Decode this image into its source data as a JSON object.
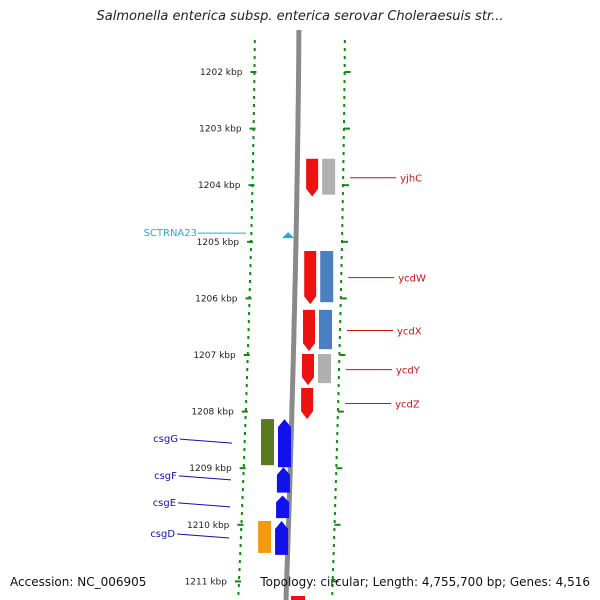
{
  "title": "Salmonella enterica subsp. enterica serovar Choleraesuis str...",
  "footer": {
    "accession": "Accession: NC_006905",
    "topology": "Topology: circular; Length: 4,755,700 bp; Genes: 4,516"
  },
  "colors": {
    "forward_cds": "#ee1111",
    "reverse_cds": "#1111ee",
    "green_cds": "#5a7a1f",
    "orange_cds": "#f59a10",
    "gray_feature": "#b0b0b0",
    "blue_feature": "#4a7fc0",
    "trna": "#2aa7d8",
    "ticks": "#118811",
    "backbone": "#8a8a8a",
    "label_red": "#cc1111",
    "label_blue": "#1111aa",
    "label_cyan": "#2aa7d8"
  },
  "scale": {
    "unit": "kbp",
    "ticks": [
      {
        "label": "1202 kbp",
        "kbp": 1202
      },
      {
        "label": "1203 kbp",
        "kbp": 1203
      },
      {
        "label": "1204 kbp",
        "kbp": 1204
      },
      {
        "label": "1205 kbp",
        "kbp": 1205
      },
      {
        "label": "1206 kbp",
        "kbp": 1206
      },
      {
        "label": "1207 kbp",
        "kbp": 1207
      },
      {
        "label": "1208 kbp",
        "kbp": 1208
      },
      {
        "label": "1209 kbp",
        "kbp": 1209
      },
      {
        "label": "1210 kbp",
        "kbp": 1210
      },
      {
        "label": "1211 kbp",
        "kbp": 1211
      }
    ]
  },
  "genes": [
    {
      "label": "yjhC",
      "strand": "forward",
      "color_key": "forward_cds",
      "start_kbp": 1203.55,
      "end_kbp": 1204.22,
      "partner_color_key": "gray_feature",
      "label_color_key": "label_red"
    },
    {
      "label": "ycdW",
      "strand": "forward",
      "color_key": "forward_cds",
      "start_kbp": 1205.18,
      "end_kbp": 1206.12,
      "partner_color_key": "blue_feature",
      "label_color_key": "label_red"
    },
    {
      "label": "ycdX",
      "strand": "forward",
      "color_key": "forward_cds",
      "start_kbp": 1206.22,
      "end_kbp": 1206.95,
      "partner_color_key": "blue_feature",
      "label_color_key": "label_red"
    },
    {
      "label": "ycdY",
      "strand": "forward",
      "color_key": "forward_cds",
      "start_kbp": 1207.0,
      "end_kbp": 1207.55,
      "partner_color_key": "gray_feature",
      "label_color_key": "label_red"
    },
    {
      "label": "ycdZ",
      "strand": "forward",
      "color_key": "forward_cds",
      "start_kbp": 1207.6,
      "end_kbp": 1208.15,
      "partner_color_key": "",
      "label_color_key": "label_red"
    },
    {
      "label": "csgG",
      "strand": "reverse",
      "color_key": "reverse_cds",
      "start_kbp": 1208.15,
      "end_kbp": 1209.0,
      "partner_color_key": "green_cds",
      "label_color_key": "label_blue"
    },
    {
      "label": "csgF",
      "strand": "reverse",
      "color_key": "reverse_cds",
      "start_kbp": 1209.0,
      "end_kbp": 1209.45,
      "partner_color_key": "",
      "label_color_key": "label_blue"
    },
    {
      "label": "csgE",
      "strand": "reverse",
      "color_key": "reverse_cds",
      "start_kbp": 1209.5,
      "end_kbp": 1209.9,
      "partner_color_key": "",
      "label_color_key": "label_blue"
    },
    {
      "label": "csgD",
      "strand": "reverse",
      "color_key": "reverse_cds",
      "start_kbp": 1209.95,
      "end_kbp": 1210.55,
      "partner_color_key": "orange_cds",
      "label_color_key": "label_blue"
    }
  ],
  "trna": [
    {
      "label": "SCTRNA23",
      "kbp": 1204.9,
      "color_key": "trna",
      "label_color_key": "label_cyan"
    }
  ]
}
